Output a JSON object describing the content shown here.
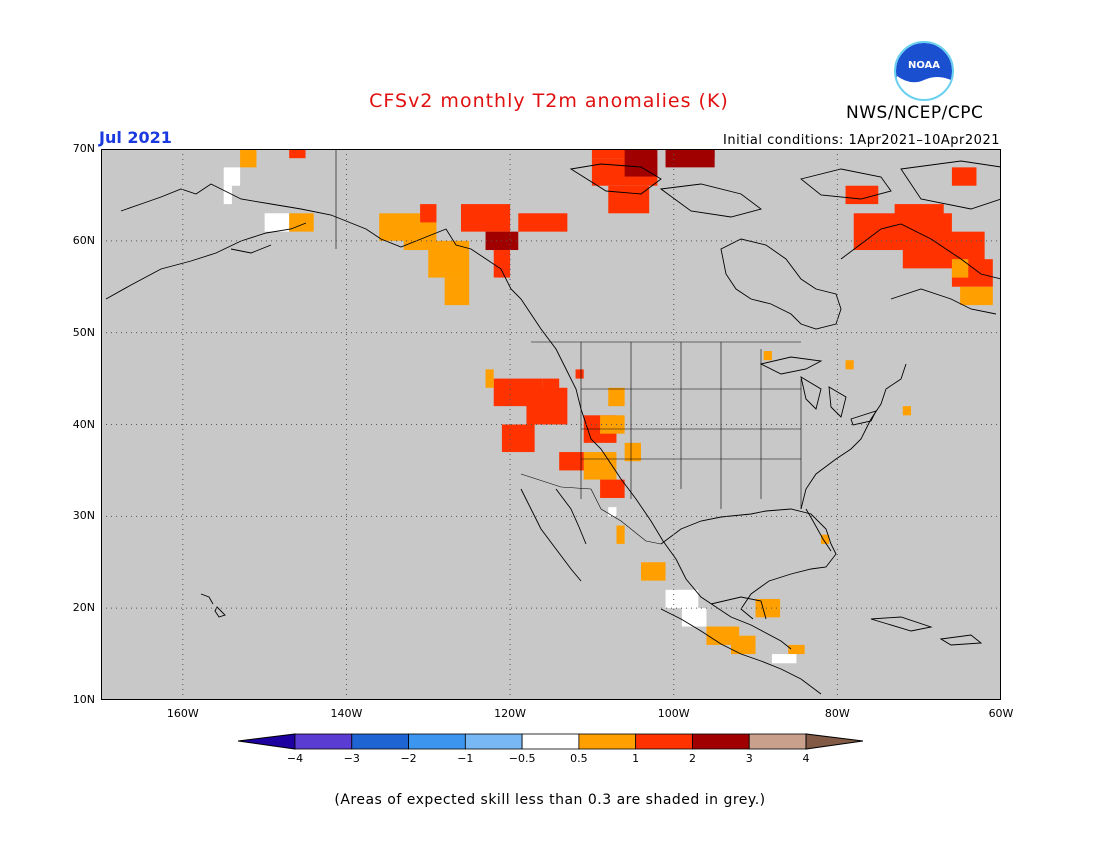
{
  "title": "CFSv2 monthly T2m anomalies (K)",
  "month": "Jul 2021",
  "initial_conditions": "Initial conditions: 1Apr2021–10Apr2021",
  "agency": "NWS/NCEP/CPC",
  "logo_text": "NOAA",
  "footnote": "(Areas of expected skill less than 0.3 are shaded in grey.)",
  "map": {
    "lon_range": [
      -170,
      -60
    ],
    "lat_range": [
      10,
      70
    ],
    "lat_ticks": [
      "10N",
      "20N",
      "30N",
      "40N",
      "50N",
      "60N",
      "70N"
    ],
    "lon_ticks": [
      "160W",
      "140W",
      "120W",
      "100W",
      "80W",
      "60W"
    ],
    "background_grey": "#c8c8c8",
    "land_outline": "#000000"
  },
  "colorbar": {
    "labels": [
      "−4",
      "−3",
      "−2",
      "−1",
      "−0.5",
      "0.5",
      "1",
      "2",
      "3",
      "4"
    ],
    "colors": [
      "#1e00a0",
      "#5a3cd2",
      "#1e64d2",
      "#3c96f0",
      "#78b9f5",
      "#ffffff",
      "#ffa000",
      "#ff3200",
      "#a00000",
      "#c8a08c",
      "#825a46"
    ]
  }
}
